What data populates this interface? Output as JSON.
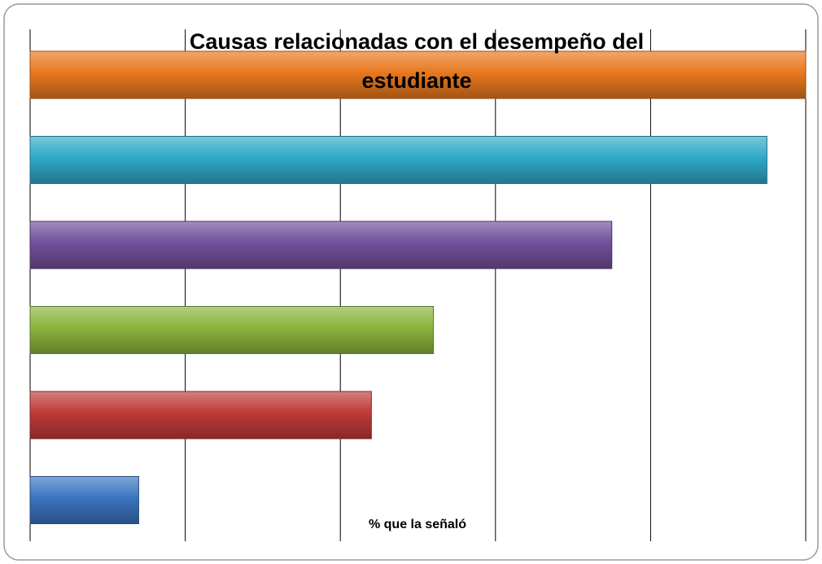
{
  "chart_data": {
    "type": "hbar",
    "title_lines": [
      "Causas relacionadas con el desempeño del",
      "estudiante"
    ],
    "x_label": "% que la señaló",
    "categories": [
      null,
      null,
      null,
      null,
      null,
      null
    ],
    "values": [
      100,
      95,
      75,
      52,
      44,
      14
    ],
    "colors": [
      "#e8781e",
      "#2eaac8",
      "#72509a",
      "#8cb43c",
      "#c03a38",
      "#3a74c0"
    ],
    "xlim": [
      0,
      100
    ],
    "xticks": [
      0,
      20,
      40,
      60,
      80,
      100
    ],
    "grid": true
  }
}
